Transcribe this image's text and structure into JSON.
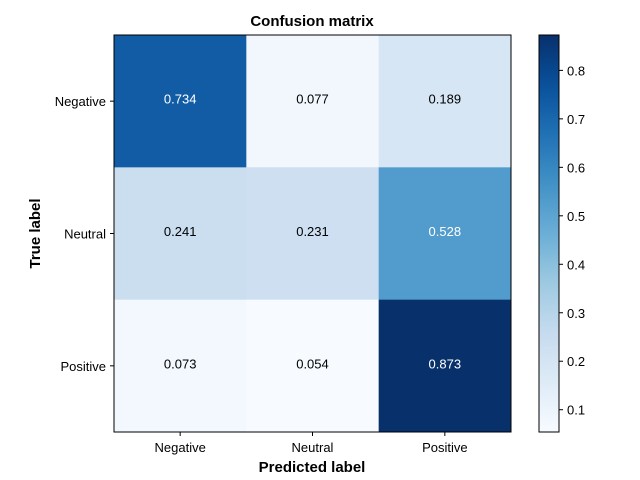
{
  "chart_data": {
    "type": "heatmap",
    "title": "Confusion matrix",
    "xlabel": "Predicted label",
    "ylabel": "True label",
    "x_categories": [
      "Negative",
      "Neutral",
      "Positive"
    ],
    "y_categories": [
      "Negative",
      "Neutral",
      "Positive"
    ],
    "values": [
      [
        0.734,
        0.077,
        0.189
      ],
      [
        0.241,
        0.231,
        0.528
      ],
      [
        0.073,
        0.054,
        0.873
      ]
    ],
    "value_labels": [
      [
        "0.734",
        "0.077",
        "0.189"
      ],
      [
        "0.241",
        "0.231",
        "0.528"
      ],
      [
        "0.073",
        "0.054",
        "0.873"
      ]
    ],
    "colormap": "Blues",
    "colorbar": {
      "range": [
        0.054,
        0.873
      ],
      "ticks": [
        0.1,
        0.2,
        0.3,
        0.4,
        0.5,
        0.6,
        0.7,
        0.8
      ],
      "tick_labels": [
        "0.1",
        "0.2",
        "0.3",
        "0.4",
        "0.5",
        "0.6",
        "0.7",
        "0.8"
      ]
    },
    "grid": false
  }
}
